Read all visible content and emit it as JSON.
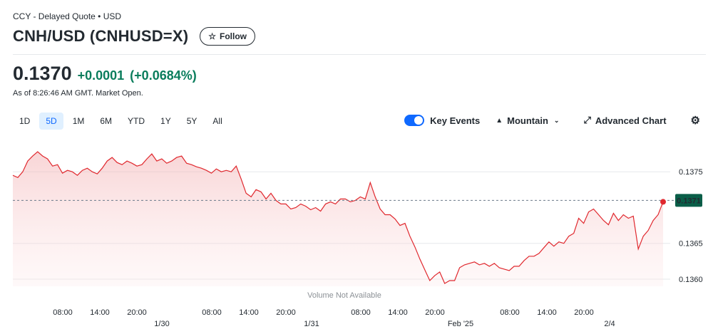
{
  "header": {
    "breadcrumb": "CCY - Delayed Quote • USD",
    "title": "CNH/USD (CNHUSD=X)",
    "follow_label": "Follow"
  },
  "quote": {
    "price": "0.1370",
    "change": "+0.0001",
    "change_pct": "(+0.0684%)",
    "as_of": "As of 8:26:46 AM GMT. Market Open."
  },
  "range_tabs": [
    "1D",
    "5D",
    "1M",
    "6M",
    "YTD",
    "1Y",
    "5Y",
    "All"
  ],
  "active_range": "5D",
  "toolbar": {
    "key_events_label": "Key Events",
    "key_events_on": true,
    "chart_type_label": "Mountain",
    "advanced_label": "Advanced Chart"
  },
  "colors": {
    "line": "#e0282e",
    "accent": "#0f69ff",
    "positive": "#0a7d5c",
    "prev_close_tag": "#0a5e48"
  },
  "chart_data": {
    "type": "area",
    "ylim": [
      0.1359,
      0.13795
    ],
    "yticks": [
      0.1375,
      0.1365,
      0.136
    ],
    "ytick_labels": [
      "0.1375",
      "0.1365",
      "0.1360"
    ],
    "prev_close": 0.1371,
    "prev_close_label": "0.1371",
    "volume_note": "Volume Not Available",
    "x_time_labels": [
      "08:00",
      "14:00",
      "20:00",
      "08:00",
      "14:00",
      "20:00",
      "08:00",
      "14:00",
      "20:00",
      "08:00",
      "14:00",
      "20:00"
    ],
    "x_day_labels": [
      "1/30",
      "1/31",
      "Feb '25",
      "2/4"
    ],
    "series": [
      {
        "values": [
          0.13745,
          0.13742,
          0.1375,
          0.13765,
          0.13772,
          0.13778,
          0.13772,
          0.13768,
          0.13758,
          0.1376,
          0.13748,
          0.13752,
          0.1375,
          0.13745,
          0.13752,
          0.13755,
          0.1375,
          0.13747,
          0.13755,
          0.13765,
          0.1377,
          0.13763,
          0.1376,
          0.13765,
          0.13762,
          0.13758,
          0.1376,
          0.13768,
          0.13775,
          0.13765,
          0.13768,
          0.13762,
          0.13765,
          0.1377,
          0.13772,
          0.13762,
          0.1376,
          0.13757,
          0.13755,
          0.13752,
          0.13748,
          0.13754,
          0.1375,
          0.13752,
          0.1375,
          0.13758,
          0.1374,
          0.1372,
          0.13715,
          0.13725,
          0.13722,
          0.13712,
          0.1372,
          0.1371,
          0.13705,
          0.13705,
          0.13698,
          0.137,
          0.13705,
          0.13702,
          0.13697,
          0.137,
          0.13695,
          0.13705,
          0.13708,
          0.13705,
          0.13712,
          0.13712,
          0.13708,
          0.1371,
          0.13715,
          0.13712,
          0.13735,
          0.13715,
          0.13698,
          0.1369,
          0.1369,
          0.13684,
          0.13675,
          0.13678,
          0.1366,
          0.13645,
          0.13628,
          0.13613,
          0.13598,
          0.13605,
          0.1361,
          0.13594,
          0.13598,
          0.13598,
          0.13616,
          0.1362,
          0.13622,
          0.13624,
          0.1362,
          0.13622,
          0.13618,
          0.13622,
          0.13616,
          0.13614,
          0.13612,
          0.13618,
          0.13618,
          0.13626,
          0.13632,
          0.13632,
          0.13636,
          0.13644,
          0.13652,
          0.13646,
          0.13652,
          0.1365,
          0.1366,
          0.13664,
          0.13685,
          0.13678,
          0.13694,
          0.13698,
          0.1369,
          0.13682,
          0.13676,
          0.13692,
          0.13682,
          0.1369,
          0.13685,
          0.13688,
          0.13642,
          0.1366,
          0.13668,
          0.13682,
          0.1369,
          0.13708
        ]
      }
    ]
  }
}
